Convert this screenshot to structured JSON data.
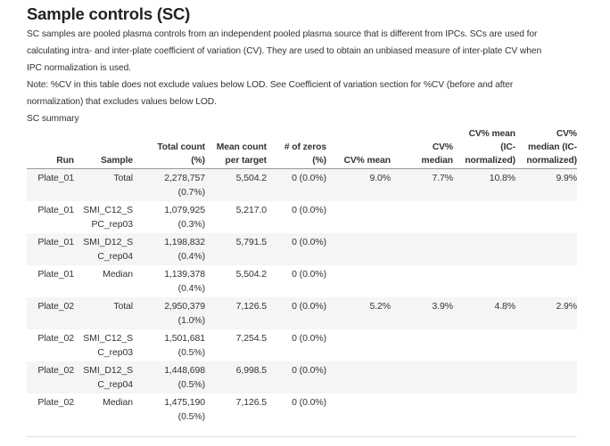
{
  "page": {
    "title": "Sample controls (SC)",
    "intro": "SC samples are pooled plasma controls from an independent pooled plasma source that is different from IPCs. SCs are used for\ncalculating intra- and inter-plate coefficient of variation (CV). They are used to obtain an unbiased measure of inter-plate CV when\nIPC normalization is used.",
    "note": "Note: %CV in this table does not exclude values below LOD. See Coefficient of variation section for %CV (before and after\nnormalization) that excludes values below LOD.",
    "table_caption": "SC summary"
  },
  "colors": {
    "text": "#333333",
    "row_stripe": "#f5f5f5",
    "header_rule": "#999999",
    "bottom_rule": "#e0e0e0",
    "background": "#ffffff"
  },
  "table": {
    "columns": [
      "Run",
      "Sample",
      "Total count\n(%)",
      "Mean count\nper target",
      "# of zeros\n(%)",
      "CV% mean",
      "CV%\nmedian",
      "CV% mean\n(IC-\nnormalized)",
      "CV%\nmedian (IC-\nnormalized)"
    ],
    "rows": [
      [
        "Plate_01",
        "Total",
        "2,278,757\n(0.7%)",
        "5,504.2",
        "0 (0.0%)",
        "9.0%",
        "7.7%",
        "10.8%",
        "9.9%"
      ],
      [
        "Plate_01",
        "SMI_C12_S\nPC_rep03",
        "1,079,925\n(0.3%)",
        "5,217.0",
        "0 (0.0%)",
        "",
        "",
        "",
        ""
      ],
      [
        "Plate_01",
        "SMI_D12_S\nC_rep04",
        "1,198,832\n(0.4%)",
        "5,791.5",
        "0 (0.0%)",
        "",
        "",
        "",
        ""
      ],
      [
        "Plate_01",
        "Median",
        "1,139,378\n(0.4%)",
        "5,504.2",
        "0 (0.0%)",
        "",
        "",
        "",
        ""
      ],
      [
        "Plate_02",
        "Total",
        "2,950,379\n(1.0%)",
        "7,126.5",
        "0 (0.0%)",
        "5.2%",
        "3.9%",
        "4.8%",
        "2.9%"
      ],
      [
        "Plate_02",
        "SMI_C12_S\nC_rep03",
        "1,501,681\n(0.5%)",
        "7,254.5",
        "0 (0.0%)",
        "",
        "",
        "",
        ""
      ],
      [
        "Plate_02",
        "SMI_D12_S\nC_rep04",
        "1,448,698\n(0.5%)",
        "6,998.5",
        "0 (0.0%)",
        "",
        "",
        "",
        ""
      ],
      [
        "Plate_02",
        "Median",
        "1,475,190\n(0.5%)",
        "7,126.5",
        "0 (0.0%)",
        "",
        "",
        "",
        ""
      ]
    ]
  }
}
